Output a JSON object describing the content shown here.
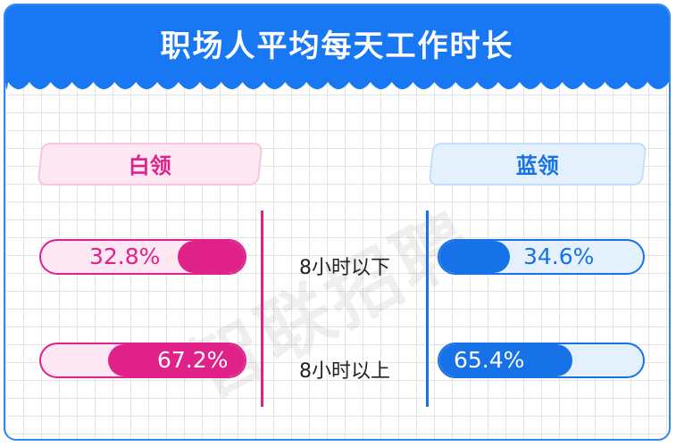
{
  "title": "职场人平均每天工作时长",
  "watermark": "智联招聘",
  "colors": {
    "header": "#1878f3",
    "white_collar": "#e0218a",
    "blue_collar": "#1672e6"
  },
  "chart_data": {
    "type": "bar",
    "title": "职场人平均每天工作时长",
    "categories": [
      "8小时以下",
      "8小时以上"
    ],
    "series": [
      {
        "name": "白领",
        "values": [
          32.8,
          67.2
        ],
        "labels": [
          "32.8%",
          "67.2%"
        ]
      },
      {
        "name": "蓝领",
        "values": [
          34.6,
          65.4
        ],
        "labels": [
          "34.6%",
          "65.4%"
        ]
      }
    ],
    "unit": "%",
    "ylim": [
      0,
      100
    ]
  }
}
